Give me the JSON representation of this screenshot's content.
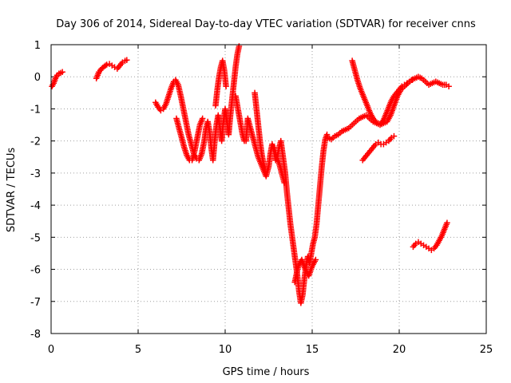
{
  "chart_data": {
    "type": "scatter",
    "title": "Day 306 of 2014, Sidereal Day-to-day VTEC variation (SDTVAR) for receiver cnns",
    "xlabel": "GPS time / hours",
    "ylabel": "SDTVAR / TECUs",
    "xlim": [
      0,
      25
    ],
    "ylim": [
      -8,
      1
    ],
    "x_ticks": [
      "0",
      "5",
      "10",
      "15",
      "20",
      "25"
    ],
    "y_ticks": [
      "1",
      "0",
      "-1",
      "-2",
      "-3",
      "-4",
      "-5",
      "-6",
      "-7",
      "-8"
    ],
    "grid": true,
    "marker": "plus",
    "color": "#ff0000",
    "series": [
      {
        "values_xy": [
          [
            0.05,
            -0.3
          ],
          [
            0.15,
            -0.2
          ],
          [
            0.25,
            -0.05
          ],
          [
            0.35,
            0.05
          ],
          [
            0.45,
            0.1
          ],
          [
            0.55,
            0.12
          ],
          [
            0.65,
            0.15
          ],
          [
            2.6,
            -0.05
          ],
          [
            2.75,
            0.15
          ],
          [
            2.9,
            0.25
          ],
          [
            3.05,
            0.32
          ],
          [
            3.2,
            0.38
          ],
          [
            3.35,
            0.4
          ],
          [
            3.5,
            0.35
          ],
          [
            3.65,
            0.3
          ],
          [
            3.8,
            0.25
          ],
          [
            3.95,
            0.35
          ],
          [
            4.1,
            0.45
          ],
          [
            4.25,
            0.5
          ],
          [
            4.35,
            0.52
          ],
          [
            6.0,
            -0.8
          ],
          [
            6.15,
            -0.95
          ],
          [
            6.3,
            -1.05
          ],
          [
            6.45,
            -1.0
          ],
          [
            6.6,
            -0.85
          ],
          [
            6.75,
            -0.6
          ],
          [
            6.9,
            -0.35
          ],
          [
            7.05,
            -0.15
          ],
          [
            7.15,
            -0.1
          ],
          [
            7.3,
            -0.25
          ],
          [
            7.45,
            -0.6
          ],
          [
            7.6,
            -1.0
          ],
          [
            7.75,
            -1.4
          ],
          [
            7.9,
            -1.8
          ],
          [
            8.05,
            -2.1
          ],
          [
            8.2,
            -2.4
          ],
          [
            8.35,
            -2.55
          ],
          [
            8.5,
            -2.6
          ],
          [
            8.65,
            -2.4
          ],
          [
            8.8,
            -2.0
          ],
          [
            8.9,
            -1.6
          ],
          [
            9.0,
            -1.4
          ],
          [
            9.1,
            -1.7
          ],
          [
            9.2,
            -2.2
          ],
          [
            9.3,
            -2.6
          ],
          [
            9.4,
            -2.0
          ],
          [
            9.5,
            -1.5
          ],
          [
            9.6,
            -1.2
          ],
          [
            9.7,
            -1.6
          ],
          [
            9.8,
            -2.0
          ],
          [
            9.9,
            -1.4
          ],
          [
            10.0,
            -1.0
          ],
          [
            10.1,
            -1.4
          ],
          [
            10.2,
            -1.8
          ],
          [
            10.3,
            -1.2
          ],
          [
            10.4,
            -0.7
          ],
          [
            10.5,
            -0.2
          ],
          [
            10.6,
            0.3
          ],
          [
            10.7,
            0.7
          ],
          [
            10.8,
            0.95
          ],
          [
            7.2,
            -1.3
          ],
          [
            7.35,
            -1.6
          ],
          [
            7.5,
            -1.9
          ],
          [
            7.65,
            -2.2
          ],
          [
            7.8,
            -2.45
          ],
          [
            7.95,
            -2.6
          ],
          [
            8.1,
            -2.6
          ],
          [
            8.25,
            -2.3
          ],
          [
            8.4,
            -1.9
          ],
          [
            8.55,
            -1.5
          ],
          [
            8.7,
            -1.3
          ],
          [
            9.45,
            -0.9
          ],
          [
            9.55,
            -0.4
          ],
          [
            9.65,
            0.0
          ],
          [
            9.75,
            0.3
          ],
          [
            9.85,
            0.5
          ],
          [
            9.95,
            0.2
          ],
          [
            10.05,
            -0.3
          ],
          [
            10.6,
            -0.6
          ],
          [
            10.7,
            -0.9
          ],
          [
            10.8,
            -1.2
          ],
          [
            10.9,
            -1.5
          ],
          [
            11.0,
            -1.8
          ],
          [
            11.1,
            -2.0
          ],
          [
            11.2,
            -2.0
          ],
          [
            11.3,
            -1.3
          ],
          [
            11.45,
            -1.6
          ],
          [
            11.6,
            -1.9
          ],
          [
            11.75,
            -2.2
          ],
          [
            11.9,
            -2.5
          ],
          [
            12.05,
            -2.7
          ],
          [
            12.2,
            -2.9
          ],
          [
            12.35,
            -3.1
          ],
          [
            12.5,
            -2.8
          ],
          [
            12.6,
            -2.4
          ],
          [
            12.7,
            -2.1
          ],
          [
            12.8,
            -2.3
          ],
          [
            12.9,
            -2.6
          ],
          [
            13.0,
            -2.5
          ],
          [
            13.1,
            -2.2
          ],
          [
            13.2,
            -2.0
          ],
          [
            13.3,
            -2.4
          ],
          [
            13.45,
            -3.0
          ],
          [
            13.55,
            -3.6
          ],
          [
            13.65,
            -4.1
          ],
          [
            13.75,
            -4.6
          ],
          [
            13.85,
            -5.0
          ],
          [
            13.95,
            -5.4
          ],
          [
            14.05,
            -5.8
          ],
          [
            14.15,
            -6.2
          ],
          [
            14.25,
            -6.7
          ],
          [
            14.35,
            -7.05
          ],
          [
            14.45,
            -6.8
          ],
          [
            14.55,
            -6.3
          ],
          [
            14.65,
            -5.9
          ],
          [
            14.75,
            -5.6
          ],
          [
            14.85,
            -5.8
          ],
          [
            14.95,
            -5.5
          ],
          [
            15.05,
            -5.2
          ],
          [
            15.15,
            -5.0
          ],
          [
            15.25,
            -4.6
          ],
          [
            15.35,
            -4.0
          ],
          [
            15.45,
            -3.4
          ],
          [
            15.55,
            -2.8
          ],
          [
            15.65,
            -2.3
          ],
          [
            15.75,
            -1.95
          ],
          [
            15.85,
            -1.8
          ],
          [
            11.7,
            -0.5
          ],
          [
            11.8,
            -1.0
          ],
          [
            11.9,
            -1.5
          ],
          [
            12.0,
            -2.0
          ],
          [
            12.1,
            -2.4
          ],
          [
            12.2,
            -2.7
          ],
          [
            12.3,
            -2.9
          ],
          [
            12.8,
            -2.2
          ],
          [
            12.95,
            -2.5
          ],
          [
            13.1,
            -2.7
          ],
          [
            13.25,
            -3.0
          ],
          [
            13.4,
            -3.3
          ],
          [
            14.0,
            -6.4
          ],
          [
            14.2,
            -5.9
          ],
          [
            14.4,
            -5.7
          ],
          [
            14.6,
            -6.0
          ],
          [
            14.8,
            -6.2
          ],
          [
            15.0,
            -5.9
          ],
          [
            15.2,
            -5.7
          ],
          [
            15.9,
            -1.9
          ],
          [
            16.1,
            -1.95
          ],
          [
            16.3,
            -1.85
          ],
          [
            16.5,
            -1.8
          ],
          [
            16.7,
            -1.7
          ],
          [
            16.9,
            -1.65
          ],
          [
            17.1,
            -1.6
          ],
          [
            17.3,
            -1.5
          ],
          [
            17.5,
            -1.4
          ],
          [
            17.7,
            -1.3
          ],
          [
            17.9,
            -1.25
          ],
          [
            18.1,
            -1.2
          ],
          [
            18.3,
            -1.3
          ],
          [
            18.5,
            -1.4
          ],
          [
            18.7,
            -1.45
          ],
          [
            18.9,
            -1.5
          ],
          [
            19.1,
            -1.45
          ],
          [
            19.3,
            -1.4
          ],
          [
            19.5,
            -1.2
          ],
          [
            19.7,
            -0.9
          ],
          [
            19.9,
            -0.6
          ],
          [
            20.1,
            -0.4
          ],
          [
            20.3,
            -0.3
          ],
          [
            20.5,
            -0.2
          ],
          [
            20.7,
            -0.1
          ],
          [
            20.9,
            -0.05
          ],
          [
            21.1,
            0.0
          ],
          [
            21.3,
            -0.05
          ],
          [
            21.5,
            -0.15
          ],
          [
            21.7,
            -0.25
          ],
          [
            21.9,
            -0.2
          ],
          [
            22.1,
            -0.15
          ],
          [
            22.3,
            -0.2
          ],
          [
            22.5,
            -0.25
          ],
          [
            22.7,
            -0.25
          ],
          [
            22.85,
            -0.3
          ],
          [
            17.3,
            0.5
          ],
          [
            17.45,
            0.2
          ],
          [
            17.6,
            -0.1
          ],
          [
            17.75,
            -0.35
          ],
          [
            17.9,
            -0.55
          ],
          [
            18.05,
            -0.75
          ],
          [
            18.2,
            -0.95
          ],
          [
            18.35,
            -1.15
          ],
          [
            18.5,
            -1.3
          ],
          [
            18.65,
            -1.4
          ],
          [
            18.8,
            -1.45
          ],
          [
            18.95,
            -1.45
          ],
          [
            19.1,
            -1.35
          ],
          [
            19.25,
            -1.15
          ],
          [
            19.4,
            -0.95
          ],
          [
            19.55,
            -0.75
          ],
          [
            19.7,
            -0.6
          ],
          [
            19.85,
            -0.5
          ],
          [
            20.0,
            -0.4
          ],
          [
            20.15,
            -0.3
          ],
          [
            20.3,
            -0.25
          ],
          [
            20.45,
            -0.2
          ],
          [
            20.6,
            -0.15
          ],
          [
            20.75,
            -0.1
          ],
          [
            17.9,
            -2.6
          ],
          [
            18.05,
            -2.5
          ],
          [
            18.2,
            -2.4
          ],
          [
            18.35,
            -2.3
          ],
          [
            18.5,
            -2.2
          ],
          [
            18.65,
            -2.1
          ],
          [
            18.8,
            -2.05
          ],
          [
            18.95,
            -2.1
          ],
          [
            19.1,
            -2.1
          ],
          [
            19.25,
            -2.05
          ],
          [
            19.4,
            -2.0
          ],
          [
            19.55,
            -1.9
          ],
          [
            19.7,
            -1.85
          ],
          [
            20.8,
            -5.3
          ],
          [
            20.95,
            -5.2
          ],
          [
            21.1,
            -5.15
          ],
          [
            21.25,
            -5.2
          ],
          [
            21.4,
            -5.25
          ],
          [
            21.55,
            -5.3
          ],
          [
            21.7,
            -5.35
          ],
          [
            21.85,
            -5.4
          ],
          [
            22.0,
            -5.35
          ],
          [
            22.15,
            -5.25
          ],
          [
            22.3,
            -5.1
          ],
          [
            22.45,
            -4.95
          ],
          [
            22.6,
            -4.75
          ],
          [
            22.75,
            -4.55
          ]
        ]
      }
    ]
  }
}
